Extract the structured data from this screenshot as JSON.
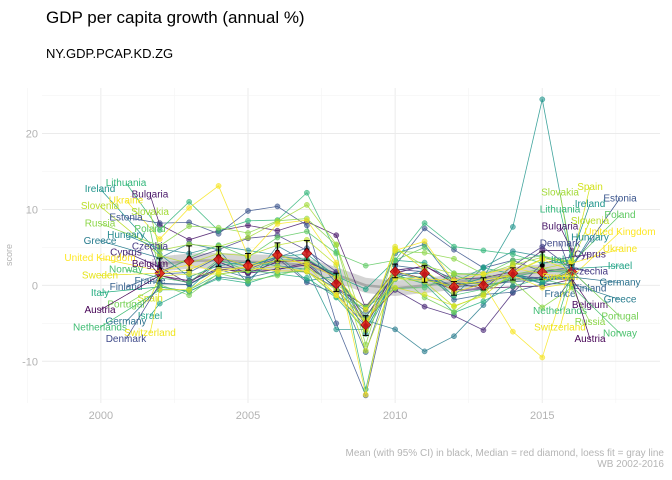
{
  "chart_data": {
    "type": "line",
    "title": "GDP per capita growth (annual %)",
    "subtitle": "NY.GDP.PCAP.KD.ZG",
    "ylabel": "score",
    "xlabel": "",
    "caption_lines": [
      "Mean (with 95% CI) in black, Median = red diamond, loess fit = gray line",
      "WB 2002-2016"
    ],
    "xlim": [
      1998,
      2019
    ],
    "ylim": [
      -15.5,
      26
    ],
    "x_ticks": [
      2000,
      2005,
      2010,
      2015
    ],
    "y_ticks": [
      -10,
      0,
      10,
      20
    ],
    "grid": true,
    "legend": "none",
    "years": [
      2002,
      2003,
      2004,
      2005,
      2006,
      2007,
      2008,
      2009,
      2010,
      2011,
      2012,
      2013,
      2014,
      2015,
      2016
    ],
    "summary": {
      "mean": [
        2.1,
        3.6,
        3.8,
        3.1,
        4.4,
        4.6,
        0.4,
        -5.3,
        1.9,
        1.5,
        -0.4,
        0.2,
        1.5,
        2.6,
        1.9
      ],
      "ci_low": [
        0.6,
        2.0,
        2.5,
        2.0,
        3.2,
        3.3,
        -0.8,
        -6.6,
        1.0,
        0.4,
        -1.3,
        -0.6,
        0.7,
        0.8,
        1.1
      ],
      "ci_high": [
        3.6,
        5.2,
        5.1,
        4.2,
        5.6,
        5.9,
        1.6,
        -4.0,
        2.8,
        2.6,
        0.5,
        1.0,
        2.3,
        4.4,
        2.7
      ],
      "median": [
        1.6,
        3.2,
        3.4,
        2.6,
        4.0,
        4.2,
        0.2,
        -5.2,
        1.8,
        1.6,
        -0.2,
        0.0,
        1.6,
        1.7,
        1.8
      ],
      "loess": [
        2.8,
        3.2,
        3.3,
        3.1,
        3.0,
        2.6,
        1.4,
        0.0,
        -0.4,
        0.0,
        0.4,
        0.9,
        1.4,
        1.8,
        2.1
      ]
    },
    "series": [
      {
        "name": "Austria",
        "color": "#440154",
        "values": [
          1.3,
          0.6,
          2.2,
          1.6,
          3.1,
          3.3,
          1.1,
          -4.2,
          1.6,
          2.6,
          0.3,
          -0.4,
          -0.2,
          -0.1,
          0.8
        ]
      },
      {
        "name": "Belgium",
        "color": "#46085c",
        "values": [
          1.3,
          0.3,
          3.1,
          1.6,
          2.1,
          2.7,
          -0.3,
          -2.8,
          1.8,
          0.9,
          -0.6,
          -0.4,
          0.8,
          1.0,
          0.9
        ]
      },
      {
        "name": "Bulgaria",
        "color": "#481668",
        "values": [
          8.0,
          6.0,
          7.2,
          7.9,
          7.2,
          8.4,
          6.6,
          -3.0,
          2.0,
          2.5,
          0.8,
          1.0,
          1.8,
          4.6,
          4.6
        ]
      },
      {
        "name": "Cyprus",
        "color": "#472676",
        "values": [
          2.4,
          0.2,
          2.1,
          1.9,
          2.1,
          3.0,
          1.6,
          -4.6,
          -0.6,
          -2.8,
          -4.0,
          -5.9,
          -1.0,
          2.9,
          3.8
        ]
      },
      {
        "name": "Czechia",
        "color": "#443983",
        "values": [
          1.8,
          3.4,
          4.7,
          6.2,
          6.6,
          4.6,
          1.8,
          -5.3,
          2.1,
          1.8,
          -0.8,
          -0.5,
          2.6,
          5.1,
          2.2
        ]
      },
      {
        "name": "Denmark",
        "color": "#3f4a8a",
        "values": [
          0.2,
          0.1,
          2.4,
          2.1,
          3.6,
          0.4,
          -1.1,
          -5.4,
          1.5,
          0.9,
          -0.1,
          0.5,
          1.2,
          1.0,
          1.5
        ]
      },
      {
        "name": "Estonia",
        "color": "#3a548c",
        "values": [
          8.2,
          8.3,
          6.8,
          9.8,
          10.4,
          7.9,
          -5.0,
          -14.5,
          2.6,
          7.5,
          4.7,
          2.3,
          3.3,
          1.8,
          2.4
        ]
      },
      {
        "name": "Finland",
        "color": "#355f8d",
        "values": [
          1.5,
          1.7,
          3.7,
          2.5,
          3.7,
          4.9,
          0.3,
          -8.8,
          2.6,
          2.1,
          -1.9,
          -1.2,
          -0.9,
          0.2,
          1.9
        ]
      },
      {
        "name": "France",
        "color": "#31688e",
        "values": [
          0.3,
          0.1,
          2.1,
          1.0,
          1.9,
          1.8,
          -0.4,
          -3.4,
          1.5,
          1.6,
          -0.2,
          0.1,
          0.5,
          0.7,
          0.8
        ]
      },
      {
        "name": "Germany",
        "color": "#2c728e",
        "values": [
          -0.2,
          -0.8,
          1.1,
          0.7,
          3.8,
          3.4,
          1.2,
          -5.4,
          4.2,
          5.4,
          0.3,
          0.2,
          1.5,
          0.7,
          1.1
        ]
      },
      {
        "name": "Greece",
        "color": "#287c8e",
        "values": [
          3.6,
          5.5,
          4.7,
          0.2,
          5.2,
          3.1,
          -0.5,
          -4.6,
          -5.8,
          -8.7,
          -6.7,
          -2.6,
          1.4,
          0.2,
          0.2
        ]
      },
      {
        "name": "Hungary",
        "color": "#23898e",
        "values": [
          4.8,
          4.2,
          5.2,
          4.6,
          4.0,
          0.6,
          1.2,
          -6.4,
          1.0,
          2.0,
          -1.4,
          2.4,
          4.5,
          3.8,
          2.4
        ]
      },
      {
        "name": "Ireland",
        "color": "#1f948c",
        "values": [
          4.1,
          1.1,
          2.6,
          3.1,
          2.6,
          2.1,
          -5.8,
          -5.8,
          1.1,
          0.7,
          -0.2,
          1.0,
          7.7,
          24.5,
          3.9
        ]
      },
      {
        "name": "Israel",
        "color": "#20a386",
        "values": [
          -2.4,
          -0.5,
          3.2,
          2.5,
          3.8,
          4.1,
          1.2,
          -0.5,
          3.3,
          3.0,
          0.4,
          2.3,
          1.5,
          0.3,
          2.2
        ]
      },
      {
        "name": "Italy",
        "color": "#26ad81",
        "values": [
          -0.2,
          -0.8,
          0.9,
          0.3,
          1.5,
          1.0,
          -1.6,
          -6.0,
          1.4,
          0.2,
          -3.6,
          -2.1,
          -0.1,
          0.9,
          1.1
        ]
      },
      {
        "name": "Lithuania",
        "color": "#32b67a",
        "values": [
          7.3,
          11.0,
          7.2,
          8.5,
          8.6,
          12.2,
          4.4,
          -13.7,
          3.3,
          8.2,
          5.1,
          4.6,
          4.1,
          2.9,
          3.2
        ]
      },
      {
        "name": "Netherlands",
        "color": "#3fbc73",
        "values": [
          -0.6,
          -0.6,
          1.5,
          1.9,
          3.3,
          3.5,
          1.2,
          -4.2,
          0.8,
          1.2,
          -1.3,
          -0.5,
          1.1,
          1.9,
          1.7
        ]
      },
      {
        "name": "Norway",
        "color": "#4ac16d",
        "values": [
          1.0,
          0.4,
          3.4,
          1.9,
          1.6,
          1.9,
          -1.5,
          -2.9,
          -0.4,
          -0.3,
          1.4,
          -0.1,
          0.8,
          0.8,
          -0.1
        ]
      },
      {
        "name": "Poland",
        "color": "#5ec962",
        "values": [
          1.5,
          3.6,
          5.3,
          3.7,
          6.3,
          7.1,
          4.2,
          2.6,
          3.3,
          5.0,
          1.6,
          1.4,
          3.3,
          3.9,
          2.9
        ]
      },
      {
        "name": "Portugal",
        "color": "#75d054",
        "values": [
          0.1,
          -1.3,
          1.6,
          0.6,
          1.3,
          2.3,
          0.2,
          -2.9,
          1.8,
          -1.6,
          -3.5,
          -0.8,
          1.4,
          2.2,
          1.9
        ]
      },
      {
        "name": "Russia",
        "color": "#8bd646",
        "values": [
          5.2,
          7.8,
          7.6,
          6.9,
          8.5,
          8.8,
          5.3,
          -7.8,
          4.5,
          4.3,
          3.5,
          1.5,
          0.6,
          -2.9,
          -0.3
        ]
      },
      {
        "name": "Slovakia",
        "color": "#a2da37",
        "values": [
          4.6,
          5.4,
          5.1,
          6.3,
          8.4,
          10.6,
          5.4,
          -5.6,
          4.8,
          2.6,
          1.5,
          1.4,
          2.7,
          3.7,
          3.2
        ]
      },
      {
        "name": "Slovenia",
        "color": "#bade28",
        "values": [
          3.9,
          2.9,
          4.2,
          3.9,
          5.3,
          6.0,
          2.7,
          -8.6,
          0.9,
          0.5,
          -2.8,
          -1.2,
          2.9,
          2.2,
          3.0
        ]
      },
      {
        "name": "Spain",
        "color": "#d2e21b",
        "values": [
          1.2,
          1.5,
          1.5,
          2.0,
          2.5,
          1.8,
          -0.6,
          -4.6,
          -0.3,
          -1.2,
          -2.7,
          -1.4,
          1.7,
          3.5,
          3.1
        ]
      },
      {
        "name": "Sweden",
        "color": "#e5e419",
        "values": [
          1.6,
          2.0,
          3.8,
          2.5,
          4.1,
          2.6,
          -1.3,
          -5.9,
          5.1,
          2.0,
          -0.9,
          0.2,
          1.6,
          3.4,
          1.9
        ]
      },
      {
        "name": "Switzerland",
        "color": "#efe51c",
        "values": [
          -0.5,
          -0.6,
          2.1,
          2.4,
          3.3,
          3.0,
          1.0,
          -3.2,
          1.9,
          0.7,
          -0.1,
          0.7,
          1.3,
          -0.3,
          0.3
        ]
      },
      {
        "name": "Ukraine",
        "color": "#f7e51f",
        "values": [
          6.1,
          10.2,
          13.1,
          3.9,
          8.1,
          8.6,
          3.0,
          -14.4,
          4.6,
          5.8,
          0.5,
          0.2,
          -6.1,
          -9.5,
          2.9
        ]
      },
      {
        "name": "United Kingdom",
        "color": "#fde725",
        "values": [
          1.9,
          2.7,
          1.8,
          2.4,
          1.9,
          1.9,
          -1.3,
          -4.9,
          1.0,
          0.8,
          0.7,
          1.5,
          2.3,
          1.5,
          1.1
        ]
      }
    ],
    "left_labels": [
      {
        "name": "Lithuania",
        "color": "#32b67a"
      },
      {
        "name": "Ireland",
        "color": "#1f948c"
      },
      {
        "name": "Bulgaria",
        "color": "#481668"
      },
      {
        "name": "Ukraine",
        "color": "#f7e51f"
      },
      {
        "name": "Slovenia",
        "color": "#bade28"
      },
      {
        "name": "Slovakia",
        "color": "#a2da37"
      },
      {
        "name": "Estonia",
        "color": "#3a548c"
      },
      {
        "name": "Russia",
        "color": "#8bd646"
      },
      {
        "name": "Poland",
        "color": "#5ec962"
      },
      {
        "name": "Hungary",
        "color": "#23898e"
      },
      {
        "name": "Greece",
        "color": "#287c8e"
      },
      {
        "name": "Czechia",
        "color": "#443983"
      },
      {
        "name": "Cyprus",
        "color": "#472676"
      },
      {
        "name": "United Kingdom",
        "color": "#fde725"
      },
      {
        "name": "Belgium",
        "color": "#46085c"
      },
      {
        "name": "Norway",
        "color": "#4ac16d"
      },
      {
        "name": "Sweden",
        "color": "#e5e419"
      },
      {
        "name": "France",
        "color": "#31688e"
      },
      {
        "name": "Finland",
        "color": "#355f8d"
      },
      {
        "name": "Italy",
        "color": "#26ad81"
      },
      {
        "name": "Spain",
        "color": "#d2e21b"
      },
      {
        "name": "Portugal",
        "color": "#75d054"
      },
      {
        "name": "Austria",
        "color": "#440154"
      },
      {
        "name": "Israel",
        "color": "#20a386"
      },
      {
        "name": "Germany",
        "color": "#2c728e"
      },
      {
        "name": "Netherlands",
        "color": "#3fbc73"
      },
      {
        "name": "Switzerland",
        "color": "#efe51c"
      },
      {
        "name": "Denmark",
        "color": "#3f4a8a"
      }
    ],
    "right_labels": [
      {
        "name": "Spain",
        "color": "#d2e21b"
      },
      {
        "name": "Slovakia",
        "color": "#a2da37"
      },
      {
        "name": "Estonia",
        "color": "#3a548c"
      },
      {
        "name": "Ireland",
        "color": "#1f948c"
      },
      {
        "name": "Lithuania",
        "color": "#32b67a"
      },
      {
        "name": "Poland",
        "color": "#5ec962"
      },
      {
        "name": "Slovenia",
        "color": "#bade28"
      },
      {
        "name": "Bulgaria",
        "color": "#481668"
      },
      {
        "name": "United Kingdom",
        "color": "#fde725"
      },
      {
        "name": "Hungary",
        "color": "#23898e"
      },
      {
        "name": "Denmark",
        "color": "#3f4a8a"
      },
      {
        "name": "Ukraine",
        "color": "#f7e51f"
      },
      {
        "name": "Cyprus",
        "color": "#472676"
      },
      {
        "name": "Italy",
        "color": "#26ad81"
      },
      {
        "name": "Israel",
        "color": "#20a386"
      },
      {
        "name": "Czechia",
        "color": "#443983"
      },
      {
        "name": "Sweden",
        "color": "#e5e419"
      },
      {
        "name": "Germany",
        "color": "#2c728e"
      },
      {
        "name": "Finland",
        "color": "#355f8d"
      },
      {
        "name": "France",
        "color": "#31688e"
      },
      {
        "name": "Greece",
        "color": "#287c8e"
      },
      {
        "name": "Belgium",
        "color": "#46085c"
      },
      {
        "name": "Netherlands",
        "color": "#3fbc73"
      },
      {
        "name": "Portugal",
        "color": "#75d054"
      },
      {
        "name": "Russia",
        "color": "#8bd646"
      },
      {
        "name": "Switzerland",
        "color": "#efe51c"
      },
      {
        "name": "Norway",
        "color": "#4ac16d"
      },
      {
        "name": "Austria",
        "color": "#440154"
      }
    ]
  }
}
